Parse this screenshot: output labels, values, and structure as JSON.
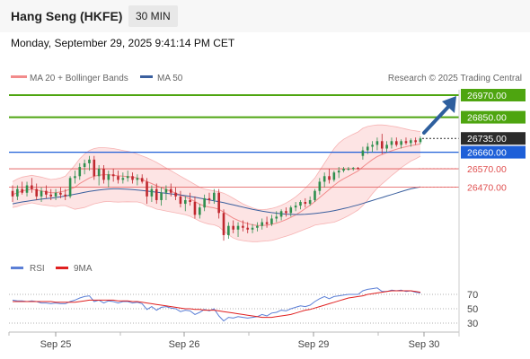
{
  "header": {
    "title": "Hang Seng (HKFE)",
    "timeframe": "30 MIN"
  },
  "datetime": "Monday, September 29, 2025 9:41:14 PM CET",
  "legend": {
    "bb": "MA 20 + Bollinger Bands",
    "ma50": "MA 50",
    "rsi": "RSI",
    "ma9": "9MA"
  },
  "source": "Research © 2025 Trading Central",
  "colors": {
    "up": "#2f8f4e",
    "down": "#c0282f",
    "bb": "#f28b8b",
    "bbfill": "#fde4e4",
    "ma50": "#3a5f9e",
    "resistance": "#4ea510",
    "current": "#2b2b2b",
    "pivot": "#1e5fd8",
    "support": "#e05050",
    "rsi": "#5b7fd6",
    "rsi_ma": "#e02020"
  },
  "chart_data": [
    {
      "type": "candlestick",
      "name": "price",
      "x_ticks": [
        "Sep 25",
        "Sep 26",
        "Sep 29",
        "Sep 30"
      ],
      "candles": [
        [
          26450,
          26480,
          26390,
          26420
        ],
        [
          26420,
          26480,
          26400,
          26460
        ],
        [
          26460,
          26500,
          26430,
          26440
        ],
        [
          26440,
          26500,
          26420,
          26480
        ],
        [
          26480,
          26520,
          26440,
          26460
        ],
        [
          26460,
          26490,
          26400,
          26420
        ],
        [
          26420,
          26470,
          26390,
          26450
        ],
        [
          26450,
          26480,
          26410,
          26430
        ],
        [
          26430,
          26460,
          26400,
          26420
        ],
        [
          26420,
          26460,
          26400,
          26440
        ],
        [
          26440,
          26470,
          26410,
          26430
        ],
        [
          26430,
          26460,
          26400,
          26420
        ],
        [
          26420,
          26530,
          26410,
          26520
        ],
        [
          26520,
          26560,
          26490,
          26530
        ],
        [
          26530,
          26600,
          26510,
          26580
        ],
        [
          26580,
          26620,
          26540,
          26600
        ],
        [
          26600,
          26640,
          26560,
          26620
        ],
        [
          26620,
          26640,
          26510,
          26530
        ],
        [
          26530,
          26590,
          26480,
          26570
        ],
        [
          26570,
          26590,
          26490,
          26510
        ],
        [
          26510,
          26560,
          26470,
          26540
        ],
        [
          26540,
          26570,
          26500,
          26530
        ],
        [
          26530,
          26560,
          26490,
          26510
        ],
        [
          26510,
          26550,
          26490,
          26520
        ],
        [
          26520,
          26560,
          26500,
          26530
        ],
        [
          26530,
          26550,
          26490,
          26510
        ],
        [
          26510,
          26540,
          26480,
          26520
        ],
        [
          26520,
          26540,
          26490,
          26500
        ],
        [
          26500,
          26520,
          26380,
          26420
        ],
        [
          26420,
          26480,
          26390,
          26460
        ],
        [
          26460,
          26490,
          26380,
          26400
        ],
        [
          26400,
          26470,
          26370,
          26440
        ],
        [
          26440,
          26480,
          26400,
          26460
        ],
        [
          26460,
          26490,
          26420,
          26440
        ],
        [
          26440,
          26470,
          26400,
          26420
        ],
        [
          26420,
          26450,
          26360,
          26380
        ],
        [
          26380,
          26420,
          26340,
          26400
        ],
        [
          26400,
          26440,
          26370,
          26390
        ],
        [
          26390,
          26420,
          26300,
          26320
        ],
        [
          26320,
          26380,
          26300,
          26360
        ],
        [
          26360,
          26430,
          26340,
          26410
        ],
        [
          26410,
          26440,
          26380,
          26400
        ],
        [
          26400,
          26460,
          26380,
          26440
        ],
        [
          26440,
          26460,
          26300,
          26330
        ],
        [
          26330,
          26350,
          26180,
          26210
        ],
        [
          26210,
          26280,
          26190,
          26260
        ],
        [
          26260,
          26290,
          26220,
          26240
        ],
        [
          26240,
          26280,
          26200,
          26260
        ],
        [
          26260,
          26290,
          26230,
          26250
        ],
        [
          26250,
          26280,
          26220,
          26240
        ],
        [
          26240,
          26270,
          26220,
          26250
        ],
        [
          26250,
          26280,
          26230,
          26260
        ],
        [
          26260,
          26300,
          26240,
          26280
        ],
        [
          26280,
          26310,
          26250,
          26270
        ],
        [
          26270,
          26320,
          26260,
          26300
        ],
        [
          26300,
          26340,
          26280,
          26310
        ],
        [
          26310,
          26350,
          26290,
          26340
        ],
        [
          26340,
          26360,
          26310,
          26330
        ],
        [
          26330,
          26370,
          26310,
          26360
        ],
        [
          26360,
          26390,
          26340,
          26370
        ],
        [
          26370,
          26400,
          26350,
          26390
        ],
        [
          26390,
          26410,
          26360,
          26380
        ],
        [
          26380,
          26420,
          26370,
          26400
        ],
        [
          26400,
          26460,
          26390,
          26450
        ],
        [
          26450,
          26520,
          26430,
          26500
        ],
        [
          26500,
          26550,
          26470,
          26530
        ],
        [
          26530,
          26570,
          26490,
          26510
        ],
        [
          26510,
          26560,
          26500,
          26550
        ],
        [
          26550,
          26580,
          26520,
          26560
        ],
        [
          26560,
          26580,
          26550,
          26570
        ],
        [
          26570,
          26580,
          26560,
          26570
        ],
        [
          26570,
          26580,
          26560,
          26575
        ],
        [
          26575,
          26580,
          26565,
          26570
        ],
        [
          26640,
          26690,
          26620,
          26670
        ],
        [
          26670,
          26710,
          26650,
          26690
        ],
        [
          26690,
          26720,
          26660,
          26700
        ],
        [
          26700,
          26740,
          26670,
          26720
        ],
        [
          26720,
          26760,
          26650,
          26680
        ],
        [
          26680,
          26720,
          26660,
          26700
        ],
        [
          26700,
          26740,
          26680,
          26720
        ],
        [
          26720,
          26740,
          26690,
          26700
        ],
        [
          26700,
          26730,
          26680,
          26720
        ],
        [
          26720,
          26740,
          26700,
          26710
        ],
        [
          26710,
          26735,
          26690,
          26725
        ],
        [
          26725,
          26740,
          26700,
          26715
        ],
        [
          26715,
          26745,
          26705,
          26735
        ]
      ],
      "bb_mid": [
        26430,
        26440,
        26450,
        26455,
        26460,
        26455,
        26450,
        26445,
        26440,
        26440,
        26445,
        26450,
        26460,
        26470,
        26490,
        26505,
        26520,
        26530,
        26535,
        26538,
        26538,
        26535,
        26532,
        26530,
        26528,
        26525,
        26520,
        26512,
        26500,
        26490,
        26478,
        26468,
        26458,
        26448,
        26438,
        26428,
        26418,
        26406,
        26392,
        26378,
        26368,
        26362,
        26358,
        26350,
        26335,
        26318,
        26302,
        26290,
        26280,
        26272,
        26266,
        26262,
        26262,
        26264,
        26268,
        26275,
        26284,
        26294,
        26306,
        26320,
        26336,
        26354,
        26372,
        26392,
        26414,
        26436,
        26458,
        26480,
        26500,
        26516,
        26530,
        26544,
        26558,
        26580,
        26600,
        26620,
        26636,
        26648,
        26658,
        26668,
        26676,
        26684,
        26690,
        26696,
        26700,
        26705
      ],
      "bb_upper": [
        26500,
        26515,
        26525,
        26530,
        26535,
        26530,
        26525,
        26518,
        26512,
        26515,
        26520,
        26530,
        26560,
        26590,
        26625,
        26650,
        26670,
        26680,
        26685,
        26685,
        26683,
        26680,
        26675,
        26670,
        26665,
        26660,
        26650,
        26640,
        26630,
        26618,
        26605,
        26590,
        26575,
        26560,
        26545,
        26530,
        26515,
        26500,
        26485,
        26470,
        26460,
        26455,
        26450,
        26445,
        26438,
        26425,
        26410,
        26395,
        26380,
        26368,
        26358,
        26350,
        26348,
        26350,
        26355,
        26362,
        26372,
        26384,
        26400,
        26418,
        26440,
        26465,
        26492,
        26520,
        26560,
        26600,
        26640,
        26680,
        26710,
        26730,
        26745,
        26758,
        26770,
        26790,
        26800,
        26805,
        26808,
        26808,
        26806,
        26802,
        26798,
        26792,
        26786,
        26780,
        26776,
        26772
      ],
      "bb_lower": [
        26360,
        26365,
        26375,
        26380,
        26385,
        26380,
        26375,
        26372,
        26368,
        26365,
        26370,
        26370,
        26360,
        26350,
        26355,
        26360,
        26370,
        26380,
        26385,
        26391,
        26393,
        26390,
        26389,
        26390,
        26391,
        26390,
        26390,
        26384,
        26370,
        26362,
        26351,
        26346,
        26341,
        26336,
        26331,
        26326,
        26321,
        26312,
        26299,
        26286,
        26276,
        26269,
        26266,
        26255,
        26232,
        26211,
        26194,
        26185,
        26180,
        26176,
        26174,
        26174,
        26176,
        26178,
        26181,
        26188,
        26196,
        26204,
        26212,
        26222,
        26232,
        26243,
        26252,
        26264,
        26268,
        26272,
        26276,
        26280,
        26290,
        26302,
        26315,
        26330,
        26346,
        26370,
        26400,
        26435,
        26464,
        26488,
        26510,
        26534,
        26554,
        26576,
        26594,
        26612,
        26624,
        26638
      ],
      "ma50": [
        26380,
        26385,
        26390,
        26394,
        26398,
        26402,
        26405,
        26408,
        26411,
        26414,
        26418,
        26422,
        26427,
        26432,
        26437,
        26442,
        26447,
        26451,
        26455,
        26458,
        26460,
        26461,
        26461,
        26460,
        26459,
        26457,
        26455,
        26452,
        26449,
        26446,
        26443,
        26440,
        26437,
        26434,
        26431,
        26428,
        26424,
        26420,
        26416,
        26411,
        26406,
        26401,
        26396,
        26391,
        26386,
        26380,
        26374,
        26368,
        26362,
        26356,
        26350,
        26345,
        26340,
        26336,
        26332,
        26329,
        26326,
        26324,
        26323,
        26322,
        26322,
        26323,
        26325,
        26327,
        26330,
        26334,
        26338,
        26343,
        26348,
        26354,
        26360,
        26367,
        26374,
        26382,
        26390,
        26398,
        26406,
        26414,
        26422,
        26430,
        26438,
        26446,
        26454,
        26461,
        26467,
        26472
      ],
      "levels": [
        {
          "value": "26970.00",
          "kind": "resistance"
        },
        {
          "value": "26850.00",
          "kind": "resistance"
        },
        {
          "value": "26735.00",
          "kind": "current"
        },
        {
          "value": "26660.00",
          "kind": "pivot"
        },
        {
          "value": "26570.00",
          "kind": "support"
        },
        {
          "value": "26470.00",
          "kind": "support"
        }
      ]
    },
    {
      "type": "line",
      "name": "rsi-panel",
      "y_ticks": [
        "70",
        "50",
        "30"
      ],
      "ylim": [
        20,
        85
      ],
      "series": [
        {
          "name": "RSI",
          "values": [
            62,
            61,
            61,
            60,
            61,
            60,
            58,
            58,
            57,
            58,
            57,
            57,
            60,
            62,
            65,
            67,
            68,
            60,
            62,
            58,
            61,
            60,
            58,
            60,
            60,
            58,
            59,
            57,
            49,
            53,
            48,
            52,
            53,
            51,
            50,
            46,
            48,
            47,
            42,
            45,
            49,
            47,
            50,
            40,
            33,
            38,
            37,
            39,
            38,
            37,
            38,
            39,
            42,
            40,
            44,
            45,
            48,
            47,
            50,
            52,
            54,
            53,
            55,
            60,
            64,
            67,
            64,
            67,
            68,
            69,
            70,
            70,
            70,
            75,
            77,
            78,
            79,
            74,
            74,
            76,
            75,
            76,
            74,
            75,
            73,
            72
          ]
        },
        {
          "name": "9MA",
          "values": [
            60,
            60,
            60,
            60,
            60,
            60,
            60,
            60,
            60,
            59,
            59,
            59,
            59,
            59,
            60,
            61,
            62,
            62,
            62,
            62,
            62,
            62,
            61,
            61,
            61,
            60,
            60,
            59,
            58,
            57,
            56,
            55,
            54,
            53,
            52,
            51,
            50,
            50,
            49,
            49,
            48,
            48,
            48,
            47,
            46,
            45,
            44,
            43,
            42,
            41,
            40,
            39,
            38,
            38,
            38,
            39,
            40,
            41,
            42,
            44,
            46,
            48,
            49,
            51,
            53,
            55,
            57,
            59,
            61,
            63,
            65,
            66,
            67,
            68,
            70,
            71,
            72,
            73,
            74,
            75,
            75,
            75,
            75,
            75,
            74,
            73
          ]
        }
      ]
    }
  ]
}
